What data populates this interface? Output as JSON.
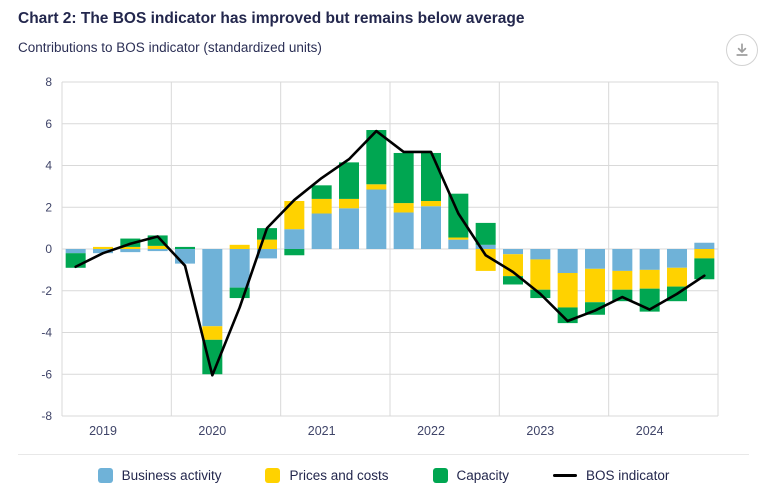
{
  "header": {
    "title": "Chart 2: The BOS indicator has improved but remains below average",
    "subtitle": "Contributions to BOS indicator (standardized units)"
  },
  "toolbar": {
    "download_tooltip": "Download"
  },
  "colors": {
    "business": "#6FB2D8",
    "prices": "#FFD200",
    "capacity": "#00A651",
    "bos_line": "#000000",
    "grid": "#D9D9D9",
    "axis_text": "#3F4468",
    "title_text": "#23274D"
  },
  "legend": [
    {
      "label": "Business activity",
      "color_key": "business",
      "marker": "square"
    },
    {
      "label": "Prices and costs",
      "color_key": "prices",
      "marker": "square"
    },
    {
      "label": "Capacity",
      "color_key": "capacity",
      "marker": "square"
    },
    {
      "label": "BOS indicator",
      "color_key": "bos_line",
      "marker": "line"
    }
  ],
  "chart_data": {
    "type": "bar",
    "subtype": "stacked-bars-with-line-overlay",
    "title": "Chart 2: The BOS indicator has improved but remains below average",
    "subtitle": "Contributions to BOS indicator (standardized units)",
    "xlabel": "",
    "ylabel": "standardized units",
    "ylim": [
      -8,
      8
    ],
    "y_ticks": [
      8,
      6,
      4,
      2,
      0,
      -2,
      -4,
      -6,
      -8
    ],
    "grid": true,
    "legend_position": "bottom",
    "x_year_labels": [
      "2019",
      "2020",
      "2021",
      "2022",
      "2023",
      "2024"
    ],
    "categories": [
      "2019 Q1",
      "2019 Q2",
      "2019 Q3",
      "2019 Q4",
      "2020 Q1",
      "2020 Q2",
      "2020 Q3",
      "2020 Q4",
      "2021 Q1",
      "2021 Q2",
      "2021 Q3",
      "2021 Q4",
      "2022 Q1",
      "2022 Q2",
      "2022 Q3",
      "2022 Q4",
      "2023 Q1",
      "2023 Q2",
      "2023 Q3",
      "2023 Q4",
      "2024 Q1",
      "2024 Q2",
      "2024 Q3",
      "2024 Q4"
    ],
    "series": [
      {
        "name": "Business activity",
        "type": "bar",
        "color_key": "business",
        "values": [
          -0.2,
          -0.2,
          -0.15,
          -0.1,
          -0.7,
          -3.7,
          -1.85,
          -0.45,
          0.95,
          1.7,
          1.95,
          2.85,
          1.75,
          2.05,
          0.45,
          0.2,
          -0.25,
          -0.5,
          -1.15,
          -0.95,
          -1.05,
          -1.0,
          -0.9,
          0.3
        ]
      },
      {
        "name": "Prices and costs",
        "type": "bar",
        "color_key": "prices",
        "values": [
          0,
          0.1,
          0.1,
          0.15,
          0,
          -0.65,
          0.2,
          0.45,
          1.35,
          0.7,
          0.45,
          0.25,
          0.45,
          0.25,
          0.1,
          -1.05,
          -1.05,
          -1.45,
          -1.65,
          -1.6,
          -0.9,
          -0.9,
          -0.9,
          -0.45
        ]
      },
      {
        "name": "Capacity",
        "type": "bar",
        "color_key": "capacity",
        "values": [
          -0.7,
          0,
          0.4,
          0.5,
          0.1,
          -1.65,
          -0.5,
          0.55,
          -0.3,
          0.65,
          1.75,
          2.6,
          2.4,
          2.3,
          2.1,
          1.05,
          -0.4,
          -0.4,
          -0.75,
          -0.6,
          -0.55,
          -1.1,
          -0.7,
          -1.0
        ]
      },
      {
        "name": "BOS indicator",
        "type": "line",
        "color_key": "bos_line",
        "values": [
          -0.85,
          -0.2,
          0.25,
          0.6,
          -0.8,
          -6.05,
          -2.8,
          1.0,
          2.35,
          3.4,
          4.3,
          5.65,
          4.65,
          4.65,
          1.7,
          -0.3,
          -1.1,
          -2.15,
          -3.45,
          -2.95,
          -2.3,
          -2.9,
          -2.15,
          -1.28
        ]
      }
    ]
  }
}
